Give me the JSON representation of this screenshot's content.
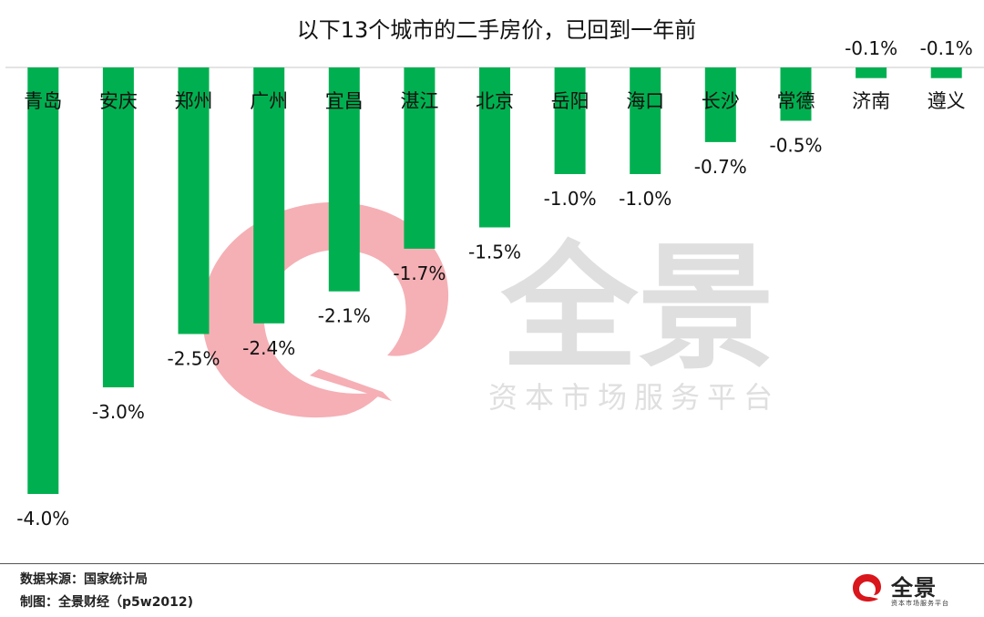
{
  "chart_data": {
    "type": "bar",
    "title": "以下13个城市的二手房价，已回到一年前",
    "categories": [
      "青岛",
      "安庆",
      "郑州",
      "广州",
      "宜昌",
      "湛江",
      "北京",
      "岳阳",
      "海口",
      "长沙",
      "常德",
      "济南",
      "遵义"
    ],
    "values": [
      -4.0,
      -3.0,
      -2.5,
      -2.4,
      -2.1,
      -1.7,
      -1.5,
      -1.0,
      -1.0,
      -0.7,
      -0.5,
      -0.1,
      -0.1
    ],
    "value_labels": [
      "-4.0%",
      "-3.0%",
      "-2.5%",
      "-2.4%",
      "-2.1%",
      "-1.7%",
      "-1.5%",
      "-1.0%",
      "-1.0%",
      "-0.7%",
      "-0.5%",
      "-0.1%",
      "-0.1%"
    ],
    "xlabel": "",
    "ylabel": "",
    "ylim": [
      -4.0,
      0
    ],
    "grid": false,
    "legend": "none",
    "bar_color": "#00b050"
  },
  "footer": {
    "source": "数据来源：国家统计局",
    "credit": "制图：全景财经（p5w2012)"
  },
  "watermark": {
    "brand": "全景",
    "tagline": "资本市场服务平台",
    "color": "#f4a7ad"
  },
  "brand": {
    "name": "全景",
    "tagline": "资本市场服务平台",
    "color": "#d9161b"
  }
}
